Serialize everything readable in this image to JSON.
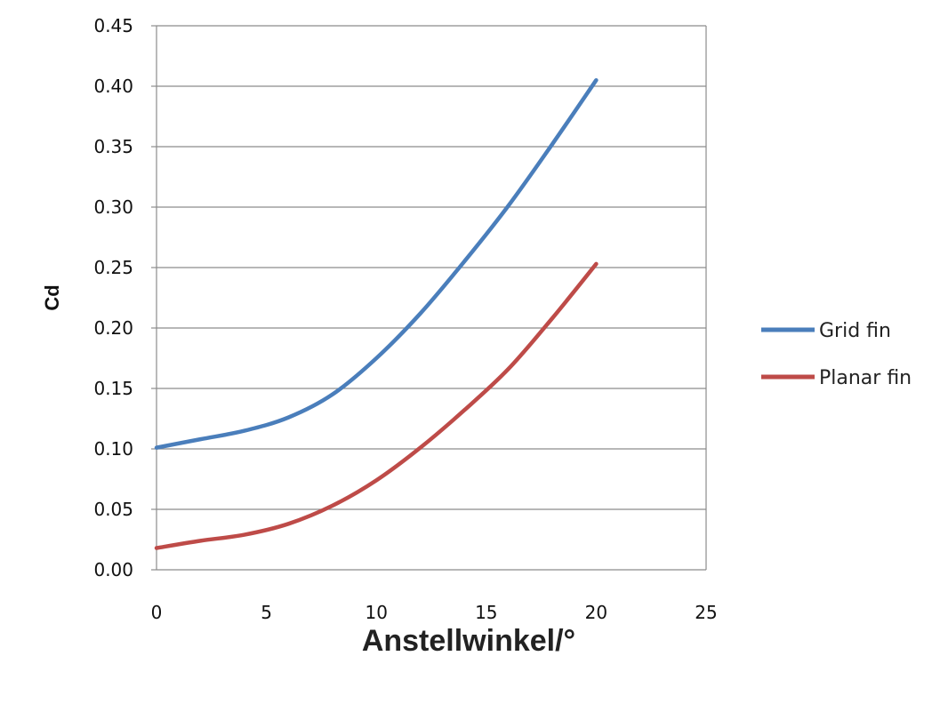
{
  "chart_data": {
    "type": "line",
    "xlabel": "Anstellwinkel/°",
    "ylabel": "Cd",
    "xlim": [
      0,
      25
    ],
    "ylim": [
      0,
      0.45
    ],
    "x_ticks": [
      "0",
      "5",
      "10",
      "15",
      "20",
      "25"
    ],
    "y_ticks": [
      "0.00",
      "0.05",
      "0.10",
      "0.15",
      "0.20",
      "0.25",
      "0.30",
      "0.35",
      "0.40",
      "0.45"
    ],
    "grid": "horizontal",
    "legend_position": "right",
    "series": [
      {
        "name": "Grid fin",
        "color": "#4a7ebb",
        "x": [
          0,
          2,
          4,
          6,
          8,
          10,
          12,
          14,
          16,
          18,
          20
        ],
        "y": [
          0.101,
          0.108,
          0.115,
          0.126,
          0.145,
          0.175,
          0.212,
          0.255,
          0.301,
          0.352,
          0.405
        ]
      },
      {
        "name": "Planar fin",
        "color": "#be4b48",
        "x": [
          0,
          2,
          4,
          6,
          8,
          10,
          12,
          14,
          16,
          18,
          20
        ],
        "y": [
          0.018,
          0.024,
          0.029,
          0.038,
          0.053,
          0.074,
          0.101,
          0.132,
          0.166,
          0.208,
          0.253
        ]
      }
    ]
  }
}
